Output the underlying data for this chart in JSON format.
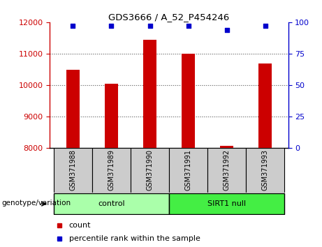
{
  "title": "GDS3666 / A_52_P454246",
  "samples": [
    "GSM371988",
    "GSM371989",
    "GSM371990",
    "GSM371991",
    "GSM371992",
    "GSM371993"
  ],
  "bar_values": [
    10500,
    10050,
    11450,
    11000,
    8080,
    10700
  ],
  "percentile_values": [
    97,
    97,
    97,
    97,
    94,
    97
  ],
  "bar_color": "#cc0000",
  "percentile_color": "#0000cc",
  "ylim_left": [
    8000,
    12000
  ],
  "ylim_right": [
    0,
    100
  ],
  "yticks_left": [
    8000,
    9000,
    10000,
    11000,
    12000
  ],
  "yticks_right": [
    0,
    25,
    50,
    75,
    100
  ],
  "groups": [
    {
      "label": "control",
      "indices": [
        0,
        1,
        2
      ],
      "color": "#aaffaa"
    },
    {
      "label": "SIRT1 null",
      "indices": [
        3,
        4,
        5
      ],
      "color": "#44ee44"
    }
  ],
  "group_label": "genotype/variation",
  "legend_count_label": "count",
  "legend_percentile_label": "percentile rank within the sample",
  "plot_bg": "#ffffff",
  "tick_area_color": "#cccccc",
  "grid_color": "#555555",
  "fig_width": 4.61,
  "fig_height": 3.54,
  "dpi": 100
}
